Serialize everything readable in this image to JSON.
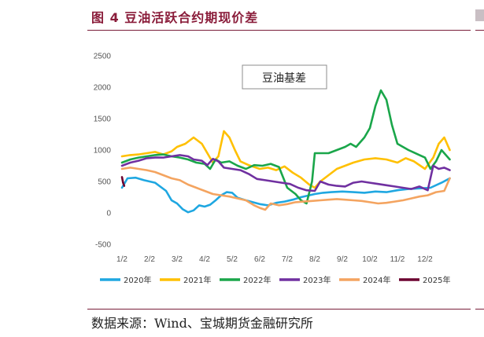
{
  "figure": {
    "title": "图 4 豆油活跃合约期现价差",
    "source": "数据来源：Wind、宝城期货金融研究所"
  },
  "chart_data": {
    "type": "line",
    "annotation": "豆油基差",
    "ylim": [
      -500,
      2500
    ],
    "yticks": [
      -500,
      0,
      500,
      1000,
      1500,
      2000,
      2500
    ],
    "xlim": [
      0,
      12
    ],
    "xticks": [
      {
        "label": "1/2",
        "x": 0
      },
      {
        "label": "2/2",
        "x": 1
      },
      {
        "label": "3/2",
        "x": 2
      },
      {
        "label": "4/2",
        "x": 3
      },
      {
        "label": "5/2",
        "x": 4
      },
      {
        "label": "6/2",
        "x": 5
      },
      {
        "label": "7/2",
        "x": 6
      },
      {
        "label": "8/2",
        "x": 7
      },
      {
        "label": "9/2",
        "x": 8
      },
      {
        "label": "10/2",
        "x": 9
      },
      {
        "label": "11/2",
        "x": 10
      },
      {
        "label": "12/2",
        "x": 11
      }
    ],
    "grid": false,
    "legend": "bottom",
    "series": [
      {
        "name": "2020年",
        "color": "#1fa7e1",
        "points": [
          [
            0,
            400
          ],
          [
            0.2,
            550
          ],
          [
            0.5,
            560
          ],
          [
            0.8,
            520
          ],
          [
            1.2,
            480
          ],
          [
            1.6,
            350
          ],
          [
            1.8,
            200
          ],
          [
            2.0,
            150
          ],
          [
            2.2,
            60
          ],
          [
            2.4,
            10
          ],
          [
            2.6,
            40
          ],
          [
            2.8,
            120
          ],
          [
            3.0,
            100
          ],
          [
            3.2,
            130
          ],
          [
            3.4,
            200
          ],
          [
            3.6,
            280
          ],
          [
            3.8,
            330
          ],
          [
            4.0,
            320
          ],
          [
            4.2,
            240
          ],
          [
            4.5,
            200
          ],
          [
            5.0,
            140
          ],
          [
            5.3,
            120
          ],
          [
            5.6,
            160
          ],
          [
            5.9,
            180
          ],
          [
            6.2,
            210
          ],
          [
            6.5,
            250
          ],
          [
            6.8,
            280
          ],
          [
            7.0,
            300
          ],
          [
            7.3,
            320
          ],
          [
            7.6,
            330
          ],
          [
            8.0,
            340
          ],
          [
            8.4,
            330
          ],
          [
            8.8,
            320
          ],
          [
            9.2,
            340
          ],
          [
            9.6,
            330
          ],
          [
            10.0,
            360
          ],
          [
            10.4,
            380
          ],
          [
            10.8,
            390
          ],
          [
            11.2,
            400
          ],
          [
            11.6,
            480
          ],
          [
            11.9,
            550
          ]
        ]
      },
      {
        "name": "2021年",
        "color": "#ffc000",
        "points": [
          [
            0,
            900
          ],
          [
            0.3,
            920
          ],
          [
            0.6,
            930
          ],
          [
            0.9,
            950
          ],
          [
            1.2,
            970
          ],
          [
            1.5,
            930
          ],
          [
            1.8,
            980
          ],
          [
            2.0,
            1050
          ],
          [
            2.3,
            1100
          ],
          [
            2.6,
            1200
          ],
          [
            2.9,
            1100
          ],
          [
            3.1,
            950
          ],
          [
            3.3,
            800
          ],
          [
            3.5,
            900
          ],
          [
            3.7,
            1300
          ],
          [
            3.9,
            1200
          ],
          [
            4.1,
            1000
          ],
          [
            4.3,
            820
          ],
          [
            4.6,
            760
          ],
          [
            5.0,
            700
          ],
          [
            5.3,
            720
          ],
          [
            5.6,
            680
          ],
          [
            5.9,
            740
          ],
          [
            6.2,
            640
          ],
          [
            6.5,
            560
          ],
          [
            6.8,
            450
          ],
          [
            7.0,
            400
          ],
          [
            7.2,
            500
          ],
          [
            7.5,
            600
          ],
          [
            7.8,
            700
          ],
          [
            8.1,
            750
          ],
          [
            8.4,
            800
          ],
          [
            8.8,
            850
          ],
          [
            9.2,
            870
          ],
          [
            9.6,
            850
          ],
          [
            10.0,
            800
          ],
          [
            10.3,
            870
          ],
          [
            10.6,
            820
          ],
          [
            11.0,
            700
          ],
          [
            11.3,
            880
          ],
          [
            11.5,
            1100
          ],
          [
            11.7,
            1200
          ],
          [
            11.9,
            1000
          ]
        ]
      },
      {
        "name": "2022年",
        "color": "#1aa64a",
        "points": [
          [
            0,
            800
          ],
          [
            0.3,
            850
          ],
          [
            0.6,
            880
          ],
          [
            0.9,
            900
          ],
          [
            1.2,
            920
          ],
          [
            1.5,
            930
          ],
          [
            1.8,
            900
          ],
          [
            2.1,
            880
          ],
          [
            2.4,
            850
          ],
          [
            2.7,
            800
          ],
          [
            3.0,
            780
          ],
          [
            3.2,
            700
          ],
          [
            3.4,
            850
          ],
          [
            3.6,
            800
          ],
          [
            3.9,
            820
          ],
          [
            4.2,
            750
          ],
          [
            4.5,
            700
          ],
          [
            4.8,
            760
          ],
          [
            5.1,
            750
          ],
          [
            5.4,
            780
          ],
          [
            5.7,
            730
          ],
          [
            6.0,
            400
          ],
          [
            6.3,
            300
          ],
          [
            6.5,
            200
          ],
          [
            6.7,
            150
          ],
          [
            6.9,
            500
          ],
          [
            7.0,
            950
          ],
          [
            7.2,
            950
          ],
          [
            7.5,
            950
          ],
          [
            7.8,
            1000
          ],
          [
            8.1,
            1050
          ],
          [
            8.3,
            1100
          ],
          [
            8.5,
            1050
          ],
          [
            8.8,
            1200
          ],
          [
            9.0,
            1350
          ],
          [
            9.2,
            1700
          ],
          [
            9.4,
            1950
          ],
          [
            9.6,
            1800
          ],
          [
            9.8,
            1400
          ],
          [
            10.0,
            1100
          ],
          [
            10.2,
            1050
          ],
          [
            10.4,
            1000
          ],
          [
            10.6,
            960
          ],
          [
            10.8,
            920
          ],
          [
            11.0,
            880
          ],
          [
            11.2,
            700
          ],
          [
            11.4,
            820
          ],
          [
            11.6,
            1000
          ],
          [
            11.8,
            900
          ],
          [
            11.9,
            850
          ]
        ]
      },
      {
        "name": "2023年",
        "color": "#7030a0",
        "points": [
          [
            0,
            750
          ],
          [
            0.3,
            800
          ],
          [
            0.6,
            830
          ],
          [
            0.9,
            870
          ],
          [
            1.2,
            880
          ],
          [
            1.5,
            880
          ],
          [
            1.8,
            900
          ],
          [
            2.1,
            920
          ],
          [
            2.4,
            900
          ],
          [
            2.6,
            850
          ],
          [
            2.9,
            830
          ],
          [
            3.1,
            760
          ],
          [
            3.3,
            860
          ],
          [
            3.5,
            820
          ],
          [
            3.7,
            720
          ],
          [
            4.0,
            700
          ],
          [
            4.3,
            680
          ],
          [
            4.6,
            620
          ],
          [
            4.9,
            540
          ],
          [
            5.2,
            520
          ],
          [
            5.5,
            500
          ],
          [
            5.8,
            480
          ],
          [
            6.1,
            460
          ],
          [
            6.4,
            400
          ],
          [
            6.7,
            360
          ],
          [
            7.0,
            350
          ],
          [
            7.2,
            500
          ],
          [
            7.5,
            450
          ],
          [
            7.8,
            430
          ],
          [
            8.1,
            420
          ],
          [
            8.4,
            480
          ],
          [
            8.7,
            500
          ],
          [
            9.0,
            480
          ],
          [
            9.3,
            460
          ],
          [
            9.6,
            440
          ],
          [
            9.9,
            420
          ],
          [
            10.2,
            400
          ],
          [
            10.5,
            380
          ],
          [
            10.8,
            420
          ],
          [
            11.1,
            360
          ],
          [
            11.3,
            750
          ],
          [
            11.5,
            700
          ],
          [
            11.7,
            720
          ],
          [
            11.9,
            680
          ]
        ]
      },
      {
        "name": "2024年",
        "color": "#f4a460",
        "points": [
          [
            0,
            700
          ],
          [
            0.3,
            720
          ],
          [
            0.6,
            700
          ],
          [
            0.9,
            680
          ],
          [
            1.2,
            650
          ],
          [
            1.5,
            600
          ],
          [
            1.8,
            550
          ],
          [
            2.1,
            520
          ],
          [
            2.4,
            450
          ],
          [
            2.7,
            400
          ],
          [
            3.0,
            350
          ],
          [
            3.3,
            300
          ],
          [
            3.6,
            280
          ],
          [
            3.9,
            260
          ],
          [
            4.2,
            230
          ],
          [
            4.5,
            200
          ],
          [
            4.8,
            120
          ],
          [
            5.0,
            80
          ],
          [
            5.2,
            50
          ],
          [
            5.4,
            150
          ],
          [
            5.7,
            120
          ],
          [
            6.0,
            140
          ],
          [
            6.3,
            170
          ],
          [
            6.6,
            180
          ],
          [
            6.9,
            190
          ],
          [
            7.2,
            200
          ],
          [
            7.5,
            210
          ],
          [
            7.8,
            220
          ],
          [
            8.1,
            210
          ],
          [
            8.4,
            200
          ],
          [
            8.7,
            190
          ],
          [
            9.0,
            170
          ],
          [
            9.3,
            150
          ],
          [
            9.6,
            160
          ],
          [
            9.9,
            180
          ],
          [
            10.2,
            200
          ],
          [
            10.5,
            230
          ],
          [
            10.8,
            260
          ],
          [
            11.1,
            280
          ],
          [
            11.4,
            330
          ],
          [
            11.7,
            350
          ],
          [
            11.9,
            550
          ]
        ]
      },
      {
        "name": "2025年",
        "color": "#6b0030",
        "points": [
          [
            0,
            570
          ],
          [
            0.04,
            480
          ],
          [
            0.08,
            430
          ]
        ]
      }
    ]
  }
}
